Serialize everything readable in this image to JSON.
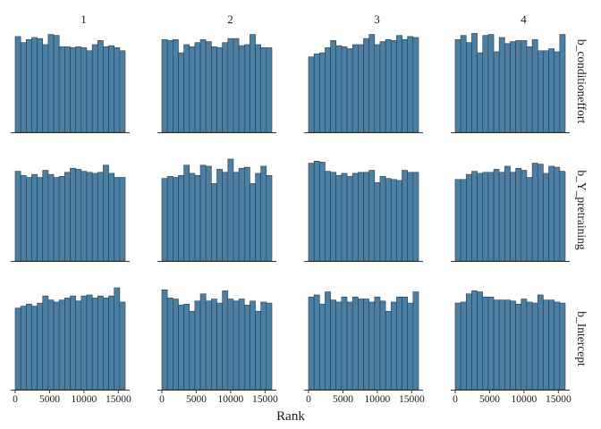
{
  "colors": {
    "bar_fill": "#4d7fa3",
    "bar_stroke": "#1f3d57",
    "axis": "#333333",
    "text": "#1a1a1a"
  },
  "chart_data": {
    "type": "bar",
    "subtype": "rank-histogram-grid",
    "xlabel": "Rank",
    "ylabel": "",
    "xlim": [
      0,
      16000
    ],
    "x_ticks": [
      0,
      5000,
      10000,
      15000
    ],
    "x_tick_labels": [
      "0",
      "5000",
      "10000",
      "15000"
    ],
    "bins": 20,
    "bin_width": 800,
    "y_axis_shown": false,
    "grid": false,
    "legend": "none",
    "chains": [
      "1",
      "2",
      "3",
      "4"
    ],
    "parameters": [
      "b_conditioneffort",
      "b_Y_pretraining",
      "b_Intercept"
    ],
    "ylim": [
      0,
      1
    ],
    "panels": [
      {
        "parameter": "b_conditioneffort",
        "chain": "1",
        "values": [
          0.94,
          0.88,
          0.91,
          0.93,
          0.92,
          0.86,
          0.96,
          0.95,
          0.84,
          0.84,
          0.83,
          0.84,
          0.83,
          0.8,
          0.86,
          0.9,
          0.84,
          0.85,
          0.83,
          0.8
        ]
      },
      {
        "parameter": "b_conditioneffort",
        "chain": "2",
        "values": [
          0.91,
          0.9,
          0.91,
          0.78,
          0.86,
          0.84,
          0.88,
          0.91,
          0.89,
          0.84,
          0.83,
          0.88,
          0.92,
          0.92,
          0.85,
          0.86,
          0.96,
          0.86,
          0.83,
          0.83
        ]
      },
      {
        "parameter": "b_conditioneffort",
        "chain": "3",
        "values": [
          0.74,
          0.77,
          0.78,
          0.83,
          0.9,
          0.85,
          0.84,
          0.82,
          0.86,
          0.86,
          0.92,
          0.96,
          0.86,
          0.89,
          0.91,
          0.9,
          0.95,
          0.91,
          0.94,
          0.93
        ]
      },
      {
        "parameter": "b_conditioneffort",
        "chain": "4",
        "values": [
          0.91,
          0.95,
          0.88,
          0.97,
          0.78,
          0.95,
          0.96,
          0.79,
          0.93,
          0.87,
          0.89,
          0.9,
          0.9,
          0.84,
          0.91,
          0.8,
          0.8,
          0.82,
          0.79,
          0.96
        ]
      },
      {
        "parameter": "b_Y_pretraining",
        "chain": "1",
        "values": [
          0.88,
          0.84,
          0.82,
          0.85,
          0.82,
          0.89,
          0.85,
          0.82,
          0.83,
          0.87,
          0.91,
          0.9,
          0.88,
          0.87,
          0.86,
          0.87,
          0.94,
          0.86,
          0.82,
          0.82
        ]
      },
      {
        "parameter": "b_Y_pretraining",
        "chain": "2",
        "values": [
          0.81,
          0.83,
          0.82,
          0.84,
          0.94,
          0.86,
          0.84,
          0.94,
          0.93,
          0.76,
          0.9,
          0.87,
          1.0,
          0.87,
          0.91,
          0.92,
          0.76,
          0.86,
          0.93,
          0.84
        ]
      },
      {
        "parameter": "b_Y_pretraining",
        "chain": "3",
        "values": [
          0.96,
          0.98,
          0.97,
          0.88,
          0.87,
          0.84,
          0.86,
          0.83,
          0.86,
          0.87,
          0.87,
          0.89,
          0.77,
          0.83,
          0.81,
          0.8,
          0.79,
          0.89,
          0.87,
          0.87
        ]
      },
      {
        "parameter": "b_Y_pretraining",
        "chain": "4",
        "values": [
          0.8,
          0.8,
          0.85,
          0.88,
          0.86,
          0.87,
          0.87,
          0.9,
          0.87,
          0.93,
          0.87,
          0.91,
          0.89,
          0.82,
          0.96,
          0.95,
          0.86,
          0.93,
          0.92,
          0.88
        ]
      },
      {
        "parameter": "b_Intercept",
        "chain": "1",
        "values": [
          0.8,
          0.82,
          0.84,
          0.82,
          0.85,
          0.92,
          0.88,
          0.86,
          0.88,
          0.9,
          0.92,
          0.87,
          0.92,
          0.93,
          0.9,
          0.92,
          0.9,
          0.92,
          1.0,
          0.86
        ]
      },
      {
        "parameter": "b_Intercept",
        "chain": "2",
        "values": [
          0.98,
          0.9,
          0.89,
          0.83,
          0.84,
          0.77,
          0.87,
          0.94,
          0.87,
          0.89,
          0.85,
          0.97,
          0.89,
          0.87,
          0.89,
          0.83,
          0.87,
          0.77,
          0.86,
          0.85
        ]
      },
      {
        "parameter": "b_Intercept",
        "chain": "3",
        "values": [
          0.91,
          0.93,
          0.84,
          0.96,
          0.88,
          0.86,
          0.91,
          0.86,
          0.91,
          0.89,
          0.89,
          0.86,
          0.91,
          0.87,
          0.77,
          0.86,
          0.91,
          0.91,
          0.85,
          0.96
        ]
      },
      {
        "parameter": "b_Intercept",
        "chain": "4",
        "values": [
          0.85,
          0.86,
          0.94,
          0.97,
          0.96,
          0.91,
          0.91,
          0.88,
          0.88,
          0.88,
          0.87,
          0.84,
          0.89,
          0.86,
          0.85,
          0.93,
          0.88,
          0.88,
          0.86,
          0.85
        ]
      }
    ]
  }
}
